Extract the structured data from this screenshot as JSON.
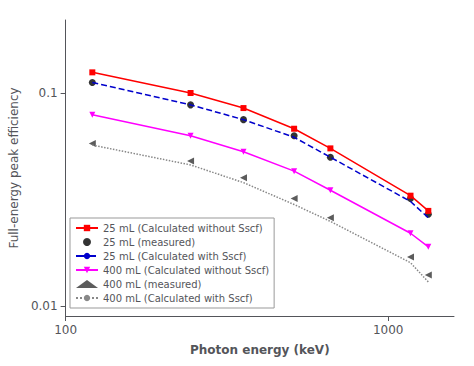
{
  "chart_data": {
    "type": "line",
    "xlabel": "Photon energy (keV)",
    "ylabel": "Full-energy peak efficiency",
    "x": [
      121,
      244,
      356,
      511,
      662,
      1173,
      1332
    ],
    "series": [
      {
        "name": "25 mL (Calculated without Sscf)",
        "type": "line",
        "color": "#ff0000",
        "marker": "square",
        "line_style": "solid",
        "values": [
          0.125,
          0.1,
          0.085,
          0.068,
          0.055,
          0.033,
          0.028
        ]
      },
      {
        "name": "25 mL (measured)",
        "type": "scatter",
        "color": "#000000",
        "marker": "circle",
        "line_style": "none",
        "values": [
          0.112,
          0.088,
          0.075,
          0.063,
          0.05,
          0.032,
          0.027
        ]
      },
      {
        "name": "25 mL (Calculated with Sscf)",
        "type": "line",
        "color": "#0000cc",
        "marker": "none",
        "line_style": "dashed",
        "values": [
          0.112,
          0.088,
          0.075,
          0.062,
          0.05,
          0.031,
          0.026
        ]
      },
      {
        "name": "400 mL (Calculated without Sscf)",
        "type": "line",
        "color": "#ff00ff",
        "marker": "triangle-down",
        "line_style": "solid",
        "values": [
          0.079,
          0.063,
          0.053,
          0.043,
          0.035,
          0.022,
          0.019
        ]
      },
      {
        "name": "400 mL (measured)",
        "type": "scatter",
        "color": "#333333",
        "marker": "triangle-left",
        "line_style": "none",
        "values": [
          0.058,
          0.048,
          0.04,
          0.032,
          0.026,
          0.017,
          0.014
        ]
      },
      {
        "name": "400 mL (Calculated with Sscf)",
        "type": "line",
        "color": "#888888",
        "marker": "none",
        "line_style": "dotted",
        "values": [
          0.057,
          0.046,
          0.038,
          0.03,
          0.025,
          0.016,
          0.013
        ]
      }
    ],
    "log": true,
    "xlim": [
      100,
      1600
    ],
    "ylim": [
      0.009,
      0.22
    ],
    "xticks": [
      100,
      1000
    ],
    "yticks": [
      0.01,
      0.1
    ],
    "grid": false,
    "legend": "lower left"
  }
}
